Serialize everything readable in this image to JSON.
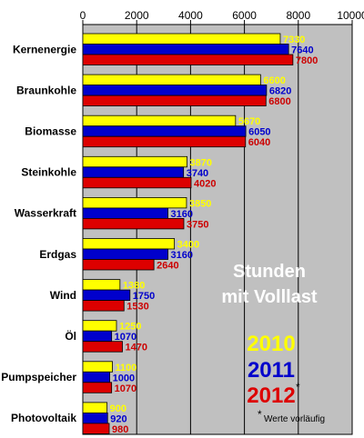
{
  "chart_data": {
    "type": "bar",
    "orientation": "horizontal",
    "xlim": [
      0,
      10000
    ],
    "x_ticks": [
      "0",
      "2000",
      "4000",
      "6000",
      "8000",
      "10000"
    ],
    "grid": "vertical",
    "categories": [
      "Kernenergie",
      "Braunkohle",
      "Biomasse",
      "Steinkohle",
      "Wasserkraft",
      "Erdgas",
      "Wind",
      "Öl",
      "Pumpspeicher",
      "Photovoltaik"
    ],
    "series": [
      {
        "name": "2010",
        "color": "#ffff00",
        "label_color": "#ffff00",
        "values": [
          7330,
          6600,
          5670,
          3870,
          3850,
          3400,
          1380,
          1250,
          1100,
          900
        ]
      },
      {
        "name": "2011",
        "color": "#0000cc",
        "label_color": "#0000cc",
        "values": [
          7640,
          6820,
          6050,
          3740,
          3160,
          3160,
          1750,
          1070,
          1000,
          920
        ]
      },
      {
        "name": "2012",
        "color": "#dd0000",
        "label_color": "#cc0000",
        "values": [
          7800,
          6800,
          6040,
          4020,
          3750,
          2640,
          1530,
          1470,
          1070,
          980
        ]
      }
    ],
    "value_labels": [
      [
        "7330",
        "6600",
        "5670",
        "3870",
        "3850",
        "3400",
        "1380",
        "1250",
        "1100",
        "900"
      ],
      [
        "7640",
        "6820",
        "6050",
        "3740",
        "3160",
        "3160",
        "1750",
        "1070",
        "1000",
        "920"
      ],
      [
        "7800",
        "6800",
        "6040",
        "4020",
        "3750",
        "2640",
        "1530",
        "1470",
        "1070",
        "980"
      ]
    ],
    "annotation_title_line1": "Stunden",
    "annotation_title_line2": "mit Volllast",
    "legend_years": [
      "2010",
      "2011",
      "2012"
    ],
    "legend_colors": [
      "#ffff00",
      "#0000cc",
      "#dd0000"
    ],
    "legend_mark": "*",
    "footnote_mark": "*",
    "footnote_text": "Werte vorläufig",
    "plot_background": "#c0c0c0"
  }
}
